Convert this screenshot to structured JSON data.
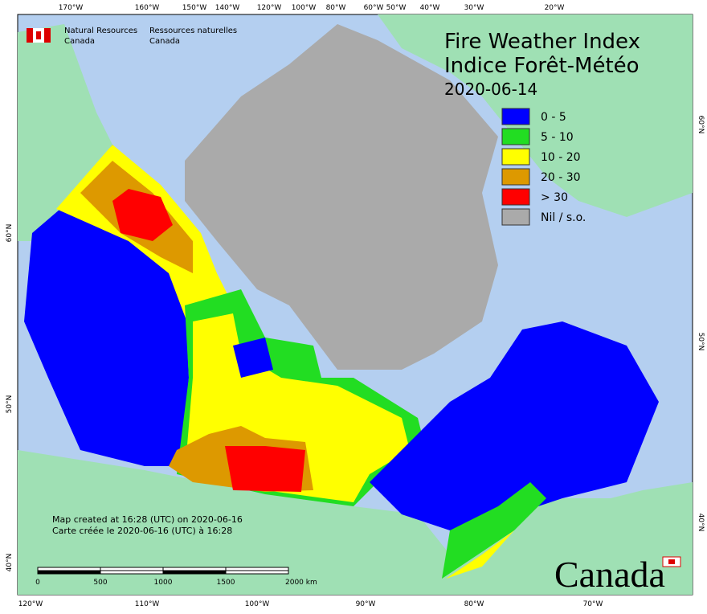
{
  "header": {
    "agency_en": [
      "Natural Resources",
      "Canada"
    ],
    "agency_fr": [
      "Ressources naturelles",
      "Canada"
    ]
  },
  "title": [
    "Fire Weather Index",
    "Indice Forêt-Météo"
  ],
  "date": "2020-06-14",
  "legend": [
    {
      "label": "0 - 5",
      "color": "#0000ff"
    },
    {
      "label": "5 - 10",
      "color": "#22dd22"
    },
    {
      "label": "10 - 20",
      "color": "#ffff00"
    },
    {
      "label": "20 - 30",
      "color": "#dd9900"
    },
    {
      "label": "> 30",
      "color": "#ff0000"
    },
    {
      "label": "Nil / s.o.",
      "color": "#aaaaaa"
    }
  ],
  "top_lon_labels": [
    "170°W",
    "160°W",
    "150°W",
    "140°W",
    "120°W",
    "100°W",
    "80°W",
    "60°W",
    "50°W",
    "40°W",
    "30°W",
    "20°W"
  ],
  "bottom_lon_labels": [
    "120°W",
    "110°W",
    "100°W",
    "90°W",
    "80°W",
    "70°W"
  ],
  "left_lat_labels": [
    "60°N",
    "50°N",
    "40°N"
  ],
  "right_lat_labels": [
    "60°N",
    "50°N",
    "40°N"
  ],
  "notes": [
    "Map created at 16:28 (UTC) on 2020-06-16",
    "Carte créée le 2020-06-16 (UTC) à 16:28"
  ],
  "scale_bar": [
    "0",
    "500",
    "1000",
    "1500",
    "2000 km"
  ],
  "wordmark": "Canada"
}
